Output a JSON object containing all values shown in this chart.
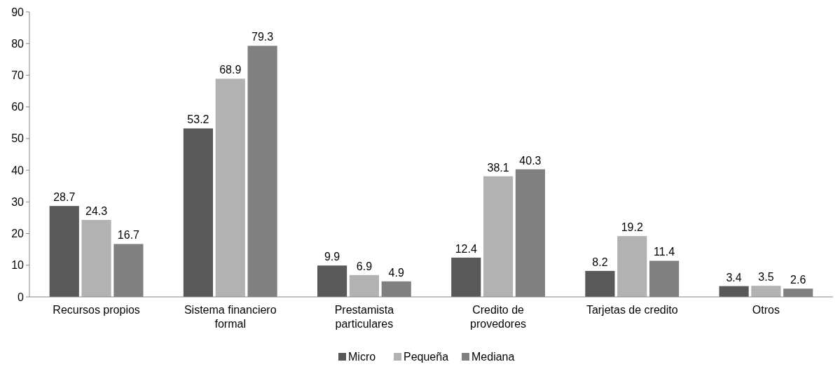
{
  "chart_data": {
    "type": "bar",
    "categories": [
      "Recursos propios",
      "Sistema financiero formal",
      "Prestamista particulares",
      "Credito de provedores",
      "Tarjetas de credito",
      "Otros"
    ],
    "series": [
      {
        "name": "Micro",
        "color": "#595959",
        "values": [
          28.7,
          53.2,
          9.9,
          12.4,
          8.2,
          3.4
        ]
      },
      {
        "name": "Pequeña",
        "color": "#b2b2b2",
        "values": [
          24.3,
          68.9,
          6.9,
          38.1,
          19.2,
          3.5
        ]
      },
      {
        "name": "Mediana",
        "color": "#808080",
        "values": [
          16.7,
          79.3,
          4.9,
          40.3,
          11.4,
          2.6
        ]
      }
    ],
    "ylim": [
      0,
      90
    ],
    "yticks": [
      0,
      10,
      20,
      30,
      40,
      50,
      60,
      70,
      80,
      90
    ],
    "data_labels": true,
    "legend": "bottom",
    "grid": false
  }
}
